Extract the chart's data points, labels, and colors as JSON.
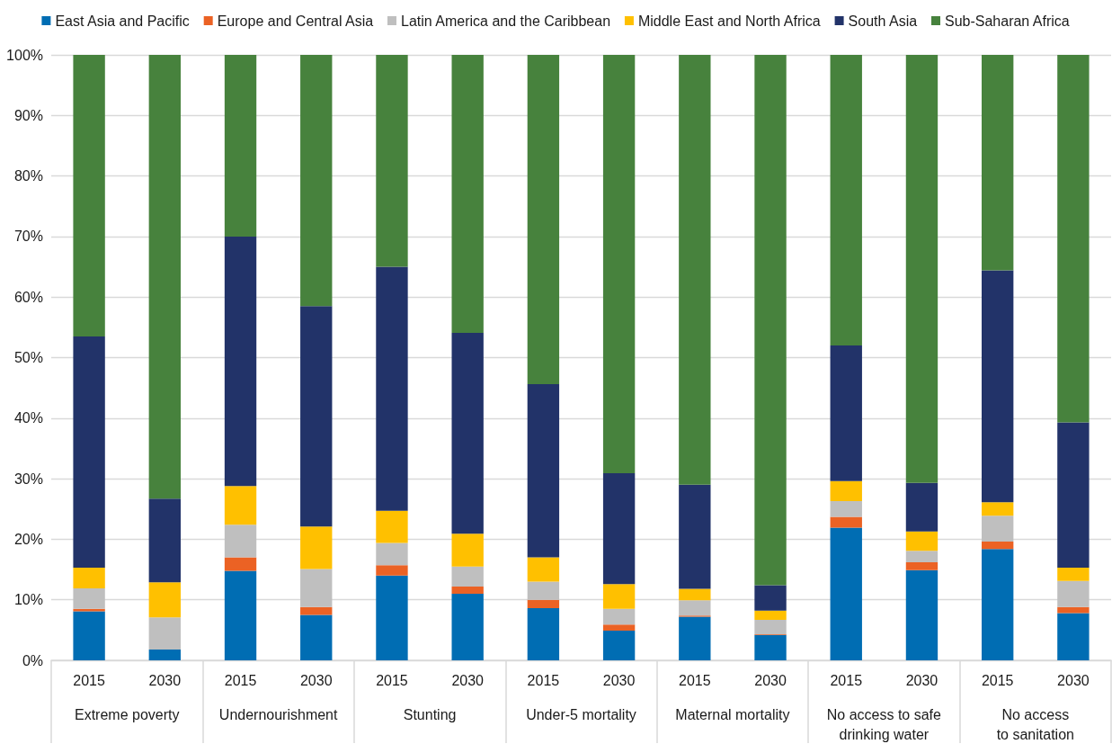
{
  "chart_data": {
    "type": "bar",
    "stacked": true,
    "categories": [
      "2015",
      "2030",
      "2015",
      "2030",
      "2015",
      "2030",
      "2015",
      "2030",
      "2015",
      "2030",
      "2015",
      "2030",
      "2015",
      "2030"
    ],
    "annotations": [
      "Extreme poverty",
      "Undernourishment",
      "Stunting",
      "Under-5 mortality",
      "Maternal mortality",
      "No access to safe\ndrinking water",
      "No access\nto sanitation"
    ],
    "series": [
      {
        "name": "East Asia and Pacific",
        "color": "#006db3",
        "values": [
          8.1,
          1.8,
          14.8,
          7.5,
          14.0,
          11.0,
          8.6,
          4.9,
          7.2,
          4.2,
          21.9,
          14.9,
          18.4,
          7.8
        ]
      },
      {
        "name": "Europe and Central Asia",
        "color": "#eb6224",
        "values": [
          0.4,
          0,
          2.2,
          1.3,
          1.7,
          1.2,
          1.4,
          1.0,
          0.2,
          0.1,
          1.8,
          1.3,
          1.2,
          1.0
        ]
      },
      {
        "name": "Latin America and the Caribbean",
        "color": "#bfbfbf",
        "values": [
          3.4,
          5.3,
          5.4,
          6.3,
          3.7,
          3.3,
          3.0,
          2.6,
          2.5,
          2.4,
          2.6,
          1.9,
          4.3,
          4.3
        ]
      },
      {
        "name": "Middle East and North Africa",
        "color": "#ffc000",
        "values": [
          3.4,
          5.8,
          6.4,
          7.0,
          5.3,
          5.4,
          4.0,
          4.1,
          1.9,
          1.5,
          3.3,
          3.2,
          2.2,
          2.2
        ]
      },
      {
        "name": "South Asia",
        "color": "#223369",
        "values": [
          38.2,
          13.8,
          41.2,
          36.4,
          40.3,
          33.2,
          28.6,
          18.3,
          17.2,
          4.2,
          22.4,
          8.0,
          38.3,
          24.0
        ]
      },
      {
        "name": "Sub-Saharan Africa",
        "color": "#47823d",
        "values": [
          46.5,
          73.3,
          30.0,
          41.5,
          35.0,
          45.9,
          54.4,
          69.1,
          71.0,
          87.6,
          48.0,
          70.7,
          35.6,
          60.7
        ]
      }
    ],
    "ylim": [
      0,
      100
    ],
    "yticks": [
      {
        "value": 0,
        "label": "0%"
      },
      {
        "value": 10,
        "label": "10%"
      },
      {
        "value": 20,
        "label": "20%"
      },
      {
        "value": 30,
        "label": "30%"
      },
      {
        "value": 40,
        "label": "40%"
      },
      {
        "value": 50,
        "label": "50%"
      },
      {
        "value": 60,
        "label": "60%"
      },
      {
        "value": 70,
        "label": "70%"
      },
      {
        "value": 80,
        "label": "80%"
      },
      {
        "value": 90,
        "label": "90%"
      },
      {
        "value": 100,
        "label": "100%"
      }
    ],
    "grid": "y",
    "legend": "top"
  }
}
